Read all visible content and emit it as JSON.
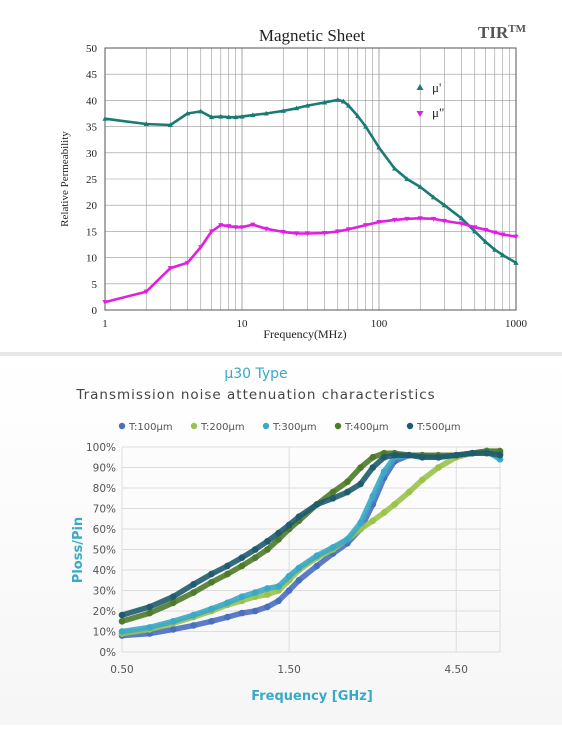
{
  "brand": {
    "text": "TIR",
    "superscript": "TM"
  },
  "chart_data": [
    {
      "type": "scatter",
      "title": "Magnetic Sheet",
      "xlabel": "Frequency(MHz)",
      "ylabel": "Relative Permeability",
      "x_scale": "log",
      "xlim": [
        1,
        1000
      ],
      "ylim": [
        0,
        50
      ],
      "x_ticks": [
        1,
        10,
        100,
        1000
      ],
      "y_ticks": [
        0,
        5,
        10,
        15,
        20,
        25,
        30,
        35,
        40,
        45,
        50
      ],
      "grid": true,
      "legend_position": "right",
      "series": [
        {
          "name": "μ'",
          "color": "#1a7a74",
          "x": [
            1,
            2,
            3,
            4,
            5,
            6,
            7,
            8,
            9,
            10,
            12,
            15,
            20,
            25,
            30,
            40,
            50,
            55,
            60,
            70,
            80,
            100,
            130,
            160,
            200,
            250,
            300,
            400,
            500,
            600,
            700,
            800,
            1000
          ],
          "y": [
            36.5,
            35.5,
            35.3,
            37.5,
            37.9,
            36.8,
            36.9,
            36.8,
            36.8,
            36.9,
            37.2,
            37.5,
            38,
            38.5,
            39,
            39.6,
            40.1,
            39.8,
            39,
            37,
            35,
            31,
            27,
            25,
            23.5,
            21.5,
            20,
            17.5,
            15,
            13,
            11.5,
            10.5,
            9
          ]
        },
        {
          "name": "μ\"",
          "color": "#e020e0",
          "x": [
            1,
            2,
            3,
            4,
            5,
            6,
            7,
            8,
            9,
            10,
            12,
            15,
            20,
            25,
            30,
            40,
            50,
            60,
            80,
            100,
            130,
            160,
            200,
            250,
            300,
            400,
            500,
            600,
            700,
            800,
            1000
          ],
          "y": [
            1.5,
            3.5,
            8,
            9,
            12,
            15,
            16.2,
            16,
            15.8,
            15.8,
            16.3,
            15.5,
            14.9,
            14.6,
            14.6,
            14.7,
            15,
            15.4,
            16.2,
            16.8,
            17.2,
            17.4,
            17.5,
            17.4,
            17,
            16.5,
            15.8,
            15.3,
            14.8,
            14.4,
            14
          ]
        }
      ]
    },
    {
      "type": "scatter",
      "title": "μ30 Type",
      "subtitle": "Transmission noise attenuation characteristics",
      "xlabel": "Frequency [GHz]",
      "ylabel": "Ploss/Pin",
      "x_scale": "log",
      "xlim": [
        0.5,
        6
      ],
      "ylim": [
        0,
        100
      ],
      "x_ticks": [
        0.5,
        1.5,
        4.5
      ],
      "x_tick_labels": [
        "0.50",
        "1.50",
        "4.50"
      ],
      "y_ticks": [
        0,
        10,
        20,
        30,
        40,
        50,
        60,
        70,
        80,
        90,
        100
      ],
      "y_tick_labels": [
        "0%",
        "10%",
        "20%",
        "30%",
        "40%",
        "50%",
        "60%",
        "70%",
        "80%",
        "90%",
        "100%"
      ],
      "grid": true,
      "legend_position": "top",
      "series": [
        {
          "name": "T:100μm",
          "color": "#4a6fbf",
          "x": [
            0.5,
            0.6,
            0.7,
            0.8,
            0.9,
            1.0,
            1.1,
            1.2,
            1.3,
            1.4,
            1.5,
            1.6,
            1.8,
            2.0,
            2.2,
            2.4,
            2.6,
            2.8,
            3.0,
            3.3,
            3.6,
            4.0,
            4.5,
            5.0,
            5.5,
            6.0
          ],
          "y": [
            8,
            9,
            11,
            13,
            15,
            17,
            19,
            20,
            22,
            25,
            30,
            35,
            42,
            48,
            53,
            60,
            72,
            85,
            93,
            96,
            96,
            95,
            96,
            97,
            98,
            97
          ]
        },
        {
          "name": "T:200μm",
          "color": "#9bc24a",
          "x": [
            0.5,
            0.6,
            0.7,
            0.8,
            0.9,
            1.0,
            1.1,
            1.2,
            1.3,
            1.4,
            1.5,
            1.6,
            1.8,
            2.0,
            2.2,
            2.4,
            2.6,
            2.8,
            3.0,
            3.3,
            3.6,
            4.0,
            4.5,
            5.0,
            5.5,
            6.0
          ],
          "y": [
            9,
            11,
            14,
            17,
            20,
            23,
            25,
            27,
            28,
            30,
            35,
            40,
            46,
            50,
            55,
            60,
            64,
            68,
            72,
            78,
            84,
            90,
            95,
            97,
            98,
            97
          ]
        },
        {
          "name": "T:300μm",
          "color": "#3aa9c8",
          "x": [
            0.5,
            0.6,
            0.7,
            0.8,
            0.9,
            1.0,
            1.1,
            1.2,
            1.3,
            1.4,
            1.5,
            1.6,
            1.8,
            2.0,
            2.2,
            2.4,
            2.6,
            2.8,
            3.0,
            3.3,
            3.6,
            4.0,
            4.5,
            5.0,
            5.5,
            6.0
          ],
          "y": [
            10,
            12,
            15,
            18,
            21,
            24,
            27,
            29,
            31,
            32,
            37,
            41,
            47,
            51,
            55,
            63,
            76,
            88,
            95,
            96,
            96,
            95,
            96,
            97,
            98,
            94
          ]
        },
        {
          "name": "T:400μm",
          "color": "#4e7a2a",
          "x": [
            0.5,
            0.6,
            0.7,
            0.8,
            0.9,
            1.0,
            1.1,
            1.2,
            1.3,
            1.4,
            1.5,
            1.6,
            1.8,
            2.0,
            2.2,
            2.4,
            2.6,
            2.8,
            3.0,
            3.3,
            3.6,
            4.0,
            4.5,
            5.0,
            5.5,
            6.0
          ],
          "y": [
            15,
            19,
            24,
            29,
            34,
            38,
            42,
            46,
            50,
            55,
            60,
            64,
            72,
            78,
            83,
            90,
            95,
            97,
            97,
            96,
            96,
            96,
            96,
            97,
            98,
            98
          ]
        },
        {
          "name": "T:500μm",
          "color": "#1f5c6e",
          "x": [
            0.5,
            0.6,
            0.7,
            0.8,
            0.9,
            1.0,
            1.1,
            1.2,
            1.3,
            1.4,
            1.5,
            1.6,
            1.8,
            2.0,
            2.2,
            2.4,
            2.6,
            2.8,
            3.0,
            3.3,
            3.6,
            4.0,
            4.5,
            5.0,
            5.5,
            6.0
          ],
          "y": [
            18,
            22,
            27,
            33,
            38,
            42,
            46,
            50,
            54,
            58,
            62,
            66,
            72,
            75,
            78,
            82,
            90,
            95,
            96,
            96,
            95,
            95,
            96,
            97,
            97,
            96
          ]
        }
      ]
    }
  ]
}
